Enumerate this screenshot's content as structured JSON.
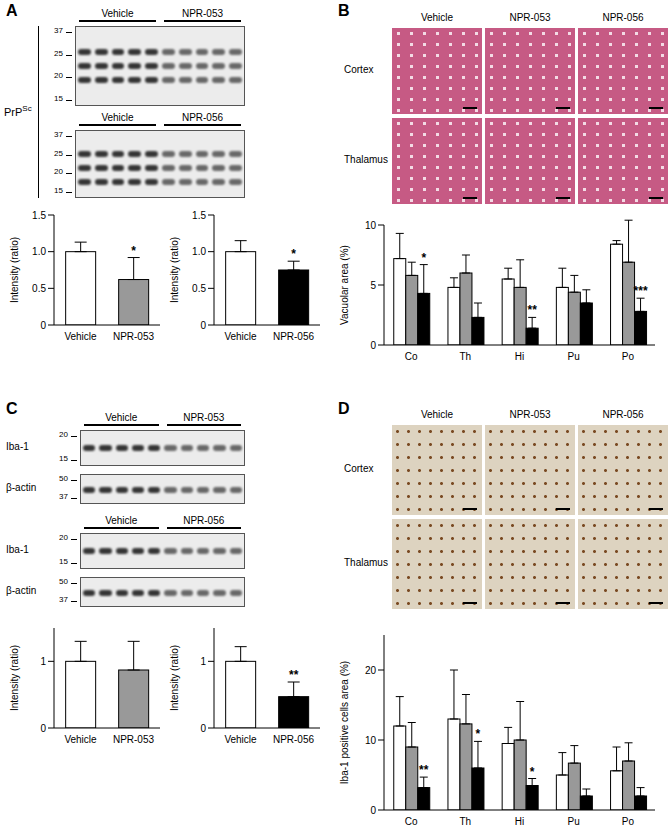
{
  "figure": {
    "panels": [
      {
        "label": "A",
        "blot_label": {
          "text": "PrP",
          "superscript": "Sc"
        },
        "blots": [
          {
            "groups": [
              "Vehicle",
              "NPR-053"
            ],
            "markers": [
              37,
              25,
              20,
              15
            ]
          },
          {
            "groups": [
              "Vehicle",
              "NPR-056"
            ],
            "markers": [
              37,
              25,
              20,
              15
            ]
          }
        ]
      },
      {
        "label": "B",
        "image_rows": [
          "Cortex",
          "Thalamus"
        ]
      },
      {
        "label": "C",
        "blots": [
          {
            "groups": [
              "Vehicle",
              "NPR-053"
            ],
            "rows": [
              {
                "name": "Iba-1",
                "markers": [
                  20,
                  15
                ]
              },
              {
                "name": "β-actin",
                "markers": [
                  50,
                  37
                ]
              }
            ]
          },
          {
            "groups": [
              "Vehicle",
              "NPR-056"
            ],
            "rows": [
              {
                "name": "Iba-1",
                "markers": [
                  20,
                  15
                ]
              },
              {
                "name": "β-actin",
                "markers": [
                  50,
                  37
                ]
              }
            ]
          }
        ]
      },
      {
        "label": "D",
        "image_rows": [
          "Cortex",
          "Thalamus"
        ]
      }
    ]
  },
  "chart_data": [
    {
      "type": "bar",
      "categories": [
        "Vehicle",
        "NPR-053"
      ],
      "values": [
        1.0,
        0.62
      ],
      "errors": [
        0.13,
        0.3
      ],
      "colors": [
        "#ffffff",
        "#999999"
      ],
      "significance": [
        null,
        "*"
      ],
      "ylabel": "Intensity (ratio)",
      "ylim": [
        0,
        1.5
      ],
      "yticks": [
        0,
        0.5,
        {
          "value": 1,
          "label": "1.0"
        },
        1.5
      ]
    },
    {
      "type": "bar",
      "categories": [
        "Vehicle",
        "NPR-056"
      ],
      "values": [
        1.0,
        0.75
      ],
      "errors": [
        0.15,
        0.12
      ],
      "colors": [
        "#ffffff",
        "#000000"
      ],
      "significance": [
        null,
        "*"
      ],
      "ylabel": "Intensity (ratio)",
      "ylim": [
        0,
        1.5
      ],
      "yticks": [
        0,
        0.5,
        {
          "value": 1,
          "label": "1.0"
        },
        1.5
      ]
    },
    {
      "type": "bar",
      "categories": [
        "Co",
        "Th",
        "Hi",
        "Pu",
        "Po"
      ],
      "ylabel": "Vacuolar area (%)",
      "ylim": [
        0,
        10
      ],
      "yticks": [
        0,
        5,
        10
      ],
      "series": [
        {
          "name": "Vehicle",
          "color": "#ffffff",
          "values": [
            7.2,
            4.8,
            5.5,
            4.8,
            8.4
          ],
          "errors": [
            2.1,
            0.8,
            0.9,
            1.6,
            0.3
          ]
        },
        {
          "name": "NPR-053",
          "color": "#999999",
          "values": [
            5.8,
            6.0,
            4.8,
            4.4,
            6.9
          ],
          "errors": [
            1.1,
            1.5,
            2.3,
            1.4,
            3.5
          ]
        },
        {
          "name": "NPR-056",
          "color": "#000000",
          "values": [
            4.3,
            2.3,
            1.4,
            3.5,
            2.8
          ],
          "errors": [
            2.4,
            1.2,
            0.9,
            1.1,
            1.1
          ],
          "significance": [
            "*",
            null,
            "**",
            null,
            "***"
          ]
        }
      ]
    },
    {
      "type": "bar",
      "categories": [
        "Vehicle",
        "NPR-053"
      ],
      "values": [
        1.0,
        0.87
      ],
      "errors": [
        0.3,
        0.43
      ],
      "colors": [
        "#ffffff",
        "#999999"
      ],
      "ylabel": "Intensity (ratio)",
      "ylim": [
        0,
        1.5
      ],
      "yticks": [
        0,
        1
      ]
    },
    {
      "type": "bar",
      "categories": [
        "Vehicle",
        "NPR-056"
      ],
      "values": [
        1.0,
        0.47
      ],
      "errors": [
        0.22,
        0.22
      ],
      "colors": [
        "#ffffff",
        "#000000"
      ],
      "significance": [
        null,
        "**"
      ],
      "ylabel": "Intensity (ratio)",
      "ylim": [
        0,
        1.5
      ],
      "yticks": [
        0,
        1
      ]
    },
    {
      "type": "bar",
      "categories": [
        "Co",
        "Th",
        "Hi",
        "Pu",
        "Po"
      ],
      "ylabel": "Iba-1 positive cells area (%)",
      "ylim": [
        0,
        25
      ],
      "yticks": [
        0,
        10,
        20
      ],
      "series": [
        {
          "name": "Vehicle",
          "color": "#ffffff",
          "values": [
            12.0,
            13.0,
            9.5,
            5.0,
            5.6
          ],
          "errors": [
            4.2,
            7.0,
            2.3,
            3.2,
            3.4
          ]
        },
        {
          "name": "NPR-053",
          "color": "#999999",
          "values": [
            9.0,
            12.3,
            10.0,
            6.7,
            7.0
          ],
          "errors": [
            3.5,
            4.2,
            5.5,
            2.5,
            2.6
          ]
        },
        {
          "name": "NPR-056",
          "color": "#000000",
          "values": [
            3.2,
            6.0,
            3.5,
            2.0,
            2.0
          ],
          "errors": [
            1.5,
            3.8,
            1.0,
            1.0,
            1.2
          ],
          "significance": [
            "**",
            "*",
            "*",
            null,
            null
          ]
        }
      ]
    }
  ]
}
